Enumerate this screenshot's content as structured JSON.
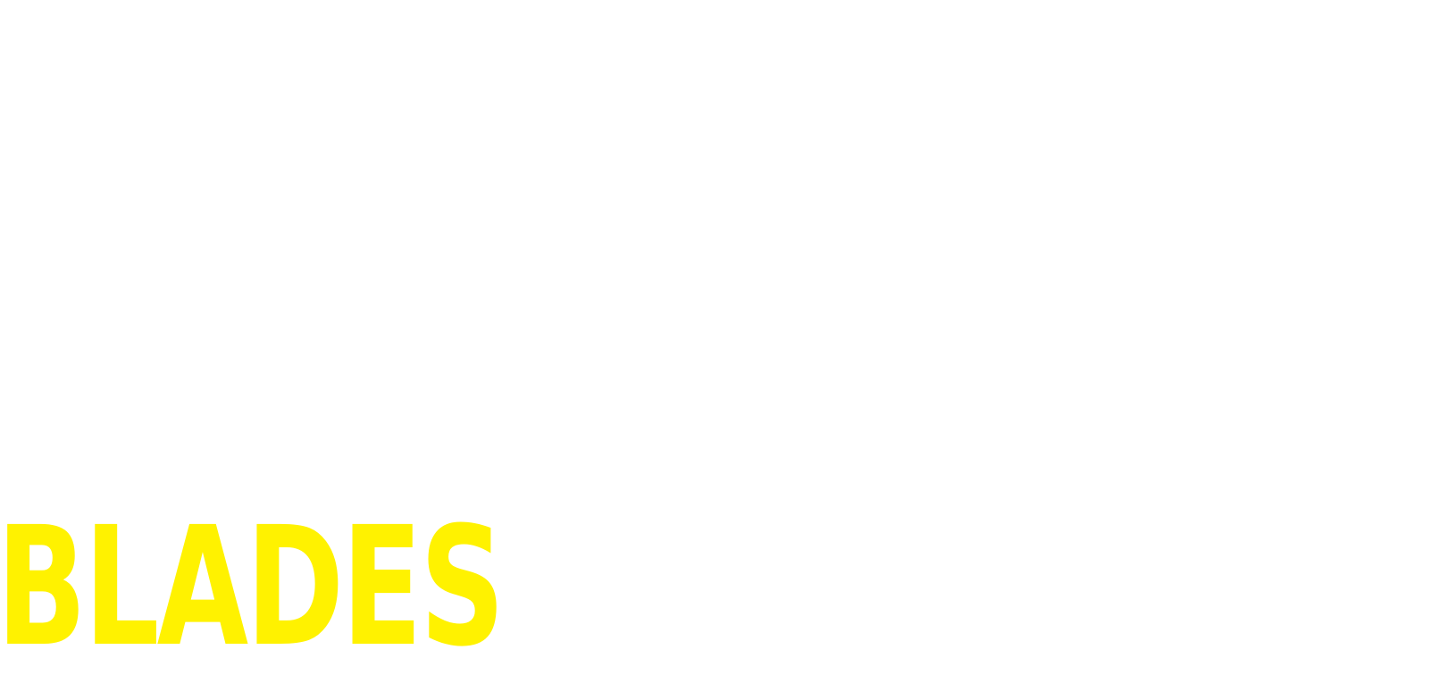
{
  "title": {
    "text": "BLADES",
    "color": "#fff200"
  },
  "background_color": "#ffffff"
}
